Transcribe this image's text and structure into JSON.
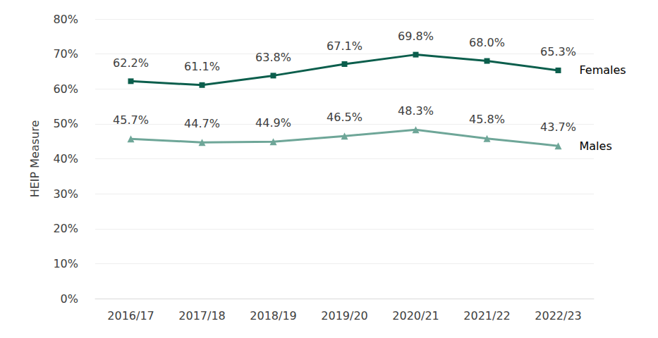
{
  "chart_data": {
    "type": "line",
    "y_label": "HEIP Measure",
    "categories": [
      "2016/17",
      "2017/18",
      "2018/19",
      "2019/20",
      "2020/21",
      "2021/22",
      "2022/23"
    ],
    "series": [
      {
        "name": "Females",
        "color": "#0b5e4c",
        "marker": "square",
        "line_style": "solid",
        "values": [
          62.2,
          61.1,
          63.8,
          67.1,
          69.8,
          68.0,
          65.3
        ],
        "value_labels": [
          "62.2%",
          "61.1%",
          "63.8%",
          "67.1%",
          "69.8%",
          "68.0%",
          "65.3%"
        ]
      },
      {
        "name": "Males",
        "color": "#6ea698",
        "marker": "triangle",
        "line_style": "solid",
        "values": [
          45.7,
          44.7,
          44.9,
          46.5,
          48.3,
          45.8,
          43.7
        ],
        "value_labels": [
          "45.7%",
          "44.7%",
          "44.9%",
          "46.5%",
          "48.3%",
          "45.8%",
          "43.7%"
        ]
      }
    ],
    "ylim": [
      0,
      80
    ],
    "yticks": [
      {
        "value": 0,
        "label": "0%"
      },
      {
        "value": 10,
        "label": "10%"
      },
      {
        "value": 20,
        "label": "20%"
      },
      {
        "value": 30,
        "label": "30%"
      },
      {
        "value": 40,
        "label": "40%"
      },
      {
        "value": 50,
        "label": "50%"
      },
      {
        "value": 60,
        "label": "60%"
      },
      {
        "value": 70,
        "label": "70%"
      },
      {
        "value": 80,
        "label": "80%"
      }
    ],
    "grid": true,
    "data_labels": true
  }
}
